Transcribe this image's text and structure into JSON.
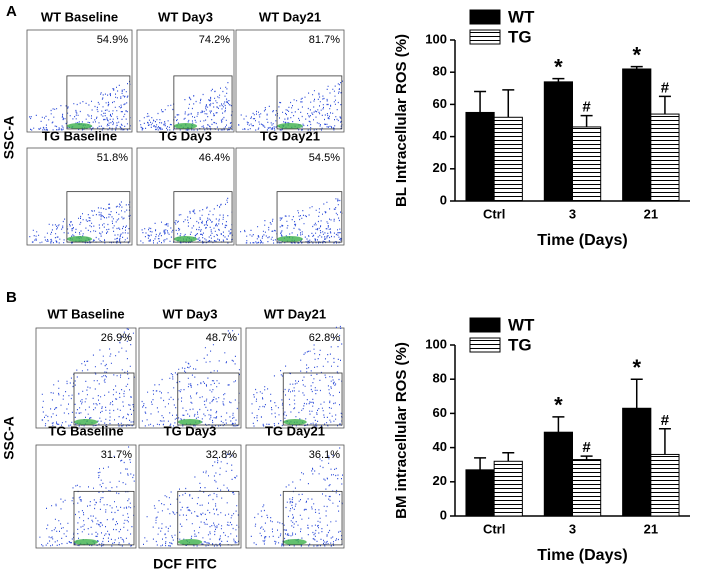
{
  "flow_panels": [
    {
      "label": "A",
      "x_label": "DCF FITC",
      "y_label": "SSC-A",
      "plots": [
        {
          "title": "WT Baseline",
          "percent": "54.9%"
        },
        {
          "title": "WT Day3",
          "percent": "74.2%"
        },
        {
          "title": "WT Day21",
          "percent": "81.7%"
        },
        {
          "title": "TG Baseline",
          "percent": "51.8%"
        },
        {
          "title": "TG Day3",
          "percent": "46.4%"
        },
        {
          "title": "TG Day21",
          "percent": "54.5%"
        }
      ]
    },
    {
      "label": "B",
      "x_label": "DCF FITC",
      "y_label": "SSC-A",
      "plots": [
        {
          "title": "WT Baseline",
          "percent": "26.9%"
        },
        {
          "title": "WT Day3",
          "percent": "48.7%"
        },
        {
          "title": "WT Day21",
          "percent": "62.8%"
        },
        {
          "title": "TG Baseline",
          "percent": "31.7%"
        },
        {
          "title": "TG Day3",
          "percent": "32.8%"
        },
        {
          "title": "TG Day21",
          "percent": "36.1%"
        }
      ]
    }
  ],
  "chart_data": [
    {
      "type": "bar",
      "x_label": "Time  (Days)",
      "y_label": "BL Intracellular  ROS (%)",
      "categories": [
        "Ctrl",
        "3",
        "21"
      ],
      "series": [
        {
          "name": "WT",
          "color": "#000000",
          "values": [
            55,
            74,
            82
          ],
          "errors": [
            13,
            2,
            1.5
          ],
          "markers": [
            null,
            "*",
            "*"
          ]
        },
        {
          "name": "TG",
          "color": "#ffffff",
          "values": [
            52,
            46,
            54
          ],
          "errors": [
            17,
            7,
            11
          ],
          "markers": [
            null,
            "#",
            "#"
          ]
        }
      ],
      "ylim": [
        0,
        100
      ],
      "yticks": [
        0,
        20,
        40,
        60,
        80,
        100
      ]
    },
    {
      "type": "bar",
      "x_label": "Time  (Days)",
      "y_label": "BM  intracellular ROS (%)",
      "categories": [
        "Ctrl",
        "3",
        "21"
      ],
      "series": [
        {
          "name": "WT",
          "color": "#000000",
          "values": [
            27,
            49,
            63
          ],
          "errors": [
            7,
            9,
            17
          ],
          "markers": [
            null,
            "*",
            "*"
          ]
        },
        {
          "name": "TG",
          "color": "#ffffff",
          "values": [
            32,
            33,
            36
          ],
          "errors": [
            5,
            2,
            15
          ],
          "markers": [
            null,
            "#",
            "#"
          ]
        }
      ],
      "ylim": [
        0,
        100
      ],
      "yticks": [
        0,
        20,
        40,
        60,
        80,
        100
      ]
    }
  ]
}
